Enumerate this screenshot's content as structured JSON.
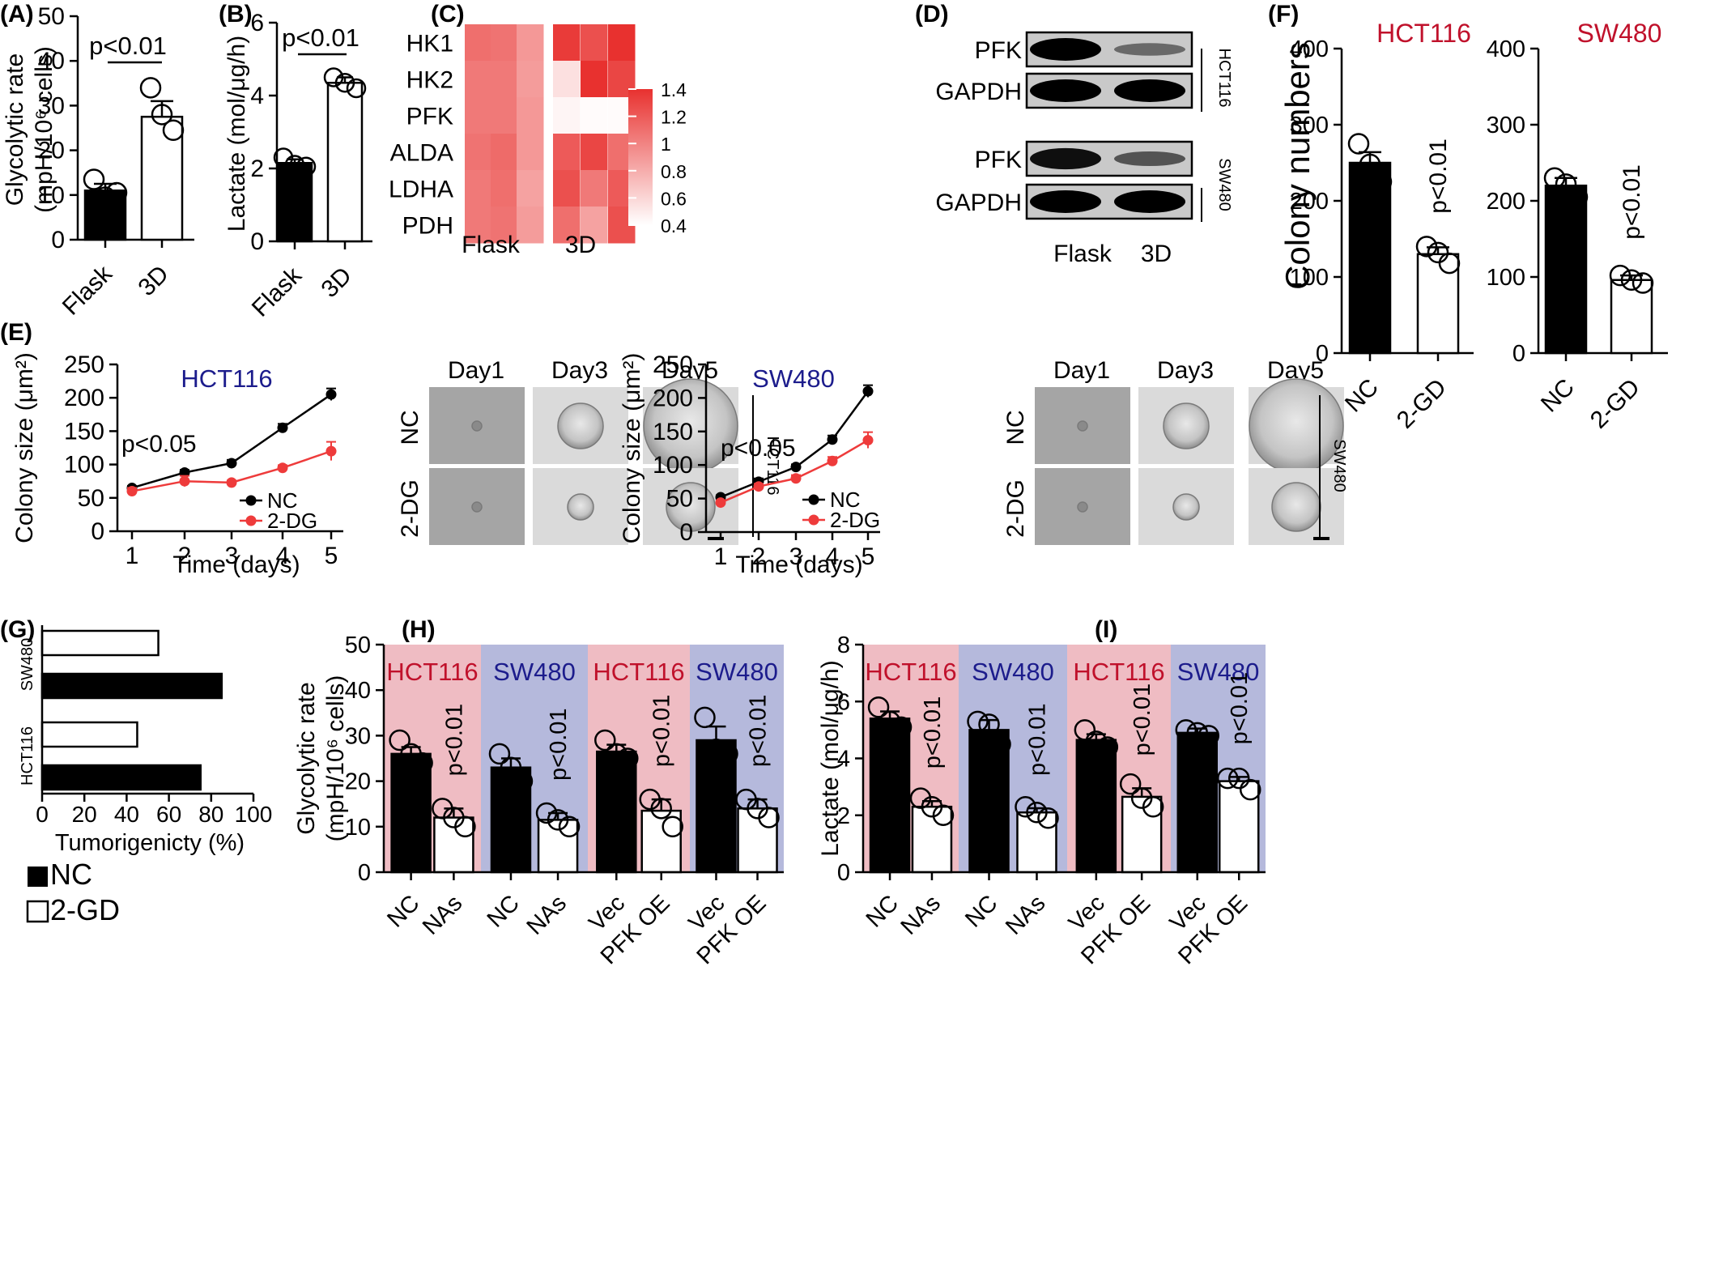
{
  "colors": {
    "black_bar": "#000000",
    "white_bar": "#ffffff",
    "red_series": "#ee3b3b",
    "hct_label": "#c0112b",
    "sw_label": "#1c1c8c",
    "pink_band": "#efbcc3",
    "blue_band": "#b5b9dc",
    "heatmap_low": "#ffffff",
    "heatmap_high": "#e8312f"
  },
  "legend_G": {
    "nc": "NC",
    "gd": "2-GD"
  },
  "icons": {
    "scale_bar": "scale-bar-icon",
    "cell": "cell-image"
  },
  "chart_data": [
    {
      "panel": "(A)",
      "type": "bar",
      "categories": [
        "Flask",
        "3D"
      ],
      "values": [
        11,
        27.5
      ],
      "errors": [
        1.5,
        3.5
      ],
      "points": [
        [
          13.5,
          10.5,
          9.5
        ],
        [
          34,
          24.5,
          28
        ]
      ],
      "ylabel": "Glycolytic rate",
      "ylabel2": "(mpH/10⁶ cells)",
      "ylim": [
        0,
        50
      ],
      "yticks": [
        "0",
        "10",
        "20",
        "30",
        "40",
        "50"
      ],
      "annotation": "p<0.01"
    },
    {
      "panel": "(B)",
      "type": "bar",
      "categories": [
        "Flask",
        "3D"
      ],
      "values": [
        2.15,
        4.35
      ],
      "errors": [
        0.1,
        0.15
      ],
      "points": [
        [
          2.3,
          2.05,
          2.1
        ],
        [
          4.5,
          4.2,
          4.35
        ]
      ],
      "ylabel": "Lactate (mol/μg/h)",
      "ylim": [
        0,
        6
      ],
      "yticks": [
        "0",
        "2",
        "4",
        "6"
      ],
      "annotation": "p<0.01"
    },
    {
      "panel": "(C)",
      "type": "heatmap",
      "rows": [
        "HK1",
        "HK2",
        "PFK",
        "ALDA",
        "LDHA",
        "PDH"
      ],
      "groups": [
        "Flask",
        "3D"
      ],
      "values": [
        [
          1.1,
          1.08,
          0.9,
          1.35,
          1.25,
          1.45
        ],
        [
          1.05,
          1.05,
          0.88,
          0.55,
          1.4,
          1.3
        ],
        [
          1.05,
          1.05,
          0.9,
          0.45,
          0.42,
          0.42
        ],
        [
          1.08,
          1.12,
          0.9,
          1.2,
          1.3,
          1.1
        ],
        [
          1.05,
          1.1,
          0.85,
          1.25,
          1.05,
          1.2
        ],
        [
          1.05,
          1.08,
          0.88,
          1.1,
          0.85,
          1.25
        ]
      ],
      "colorbar": {
        "min": 0.4,
        "max": 1.4,
        "ticks": [
          "1.4",
          "1.2",
          "1",
          "0.8",
          "0.6",
          "0.4"
        ]
      }
    },
    {
      "panel": "(D)",
      "type": "table",
      "blocks": [
        {
          "cell_line": "HCT116",
          "bands": [
            "PFK",
            "GAPDH"
          ],
          "intensity": [
            [
              1.0,
              0.3
            ],
            [
              1.0,
              1.0
            ]
          ]
        },
        {
          "cell_line": "SW480",
          "bands": [
            "PFK",
            "GAPDH"
          ],
          "intensity": [
            [
              0.9,
              0.45
            ],
            [
              1.0,
              1.0
            ]
          ]
        }
      ],
      "lanes": [
        "Flask",
        "3D"
      ]
    },
    {
      "panel": "(F)",
      "type": "bar",
      "subplots": [
        {
          "title": "HCT116",
          "categories": [
            "NC",
            "2-GD"
          ],
          "values": [
            250,
            130
          ],
          "errors": [
            14,
            9
          ],
          "points": [
            [
              275,
              225,
              248
            ],
            [
              140,
              118,
              132
            ]
          ],
          "annotation": "p<0.01"
        },
        {
          "title": "SW480",
          "categories": [
            "NC",
            "2-GD"
          ],
          "values": [
            220,
            96
          ],
          "errors": [
            10,
            6
          ],
          "points": [
            [
              230,
              205,
              222
            ],
            [
              102,
              92,
              96
            ]
          ],
          "annotation": "p<0.01"
        }
      ],
      "ylabel": "Colony numbers",
      "ylim": [
        0,
        400
      ],
      "yticks": [
        "0",
        "100",
        "200",
        "300",
        "400"
      ]
    },
    {
      "panel": "(E)",
      "type": "line",
      "subplots": [
        {
          "title": "HCT116",
          "x": [
            1,
            2,
            3,
            4,
            5
          ],
          "series": [
            {
              "name": "NC",
              "values": [
                65,
                88,
                102,
                155,
                205
              ],
              "errors": [
                3,
                4,
                5,
                6,
                9
              ]
            },
            {
              "name": "2-DG",
              "values": [
                60,
                75,
                73,
                95,
                120
              ],
              "errors": [
                5,
                8,
                3,
                4,
                14
              ]
            }
          ],
          "annotation": "p<0.05",
          "images": {
            "rows": [
              "NC",
              "2-DG"
            ],
            "cols": [
              "Day1",
              "Day3",
              "Day5"
            ],
            "side_label": "HCT116"
          }
        },
        {
          "title": "SW480",
          "x": [
            1,
            2,
            3,
            4,
            5
          ],
          "series": [
            {
              "name": "NC",
              "values": [
                52,
                75,
                97,
                138,
                210
              ],
              "errors": [
                3,
                5,
                4,
                6,
                9
              ]
            },
            {
              "name": "2-DG",
              "values": [
                44,
                68,
                80,
                106,
                137
              ],
              "errors": [
                3,
                4,
                5,
                6,
                12
              ]
            }
          ],
          "annotation": "p<0.05",
          "images": {
            "rows": [
              "NC",
              "2-DG"
            ],
            "cols": [
              "Day1",
              "Day3",
              "Day5"
            ],
            "side_label": "SW480"
          }
        }
      ],
      "xlabel": "Time (days)",
      "ylabel": "Colony size (μm²)",
      "ylim": [
        0,
        250
      ],
      "yticks": [
        "0",
        "50",
        "100",
        "150",
        "200",
        "250"
      ],
      "xticks": [
        "1",
        "2",
        "3",
        "4",
        "5"
      ]
    },
    {
      "panel": "(G)",
      "type": "bar",
      "orientation": "horizontal",
      "groups": [
        "SW480",
        "HCT116"
      ],
      "series": [
        {
          "name": "2-GD",
          "values": [
            55,
            45
          ]
        },
        {
          "name": "NC",
          "values": [
            85,
            75
          ]
        }
      ],
      "xlabel": "Tumorigenicty (%)",
      "xlim": [
        0,
        100
      ],
      "xticks": [
        "0",
        "20",
        "40",
        "60",
        "80",
        "100"
      ]
    },
    {
      "panel": "(H)",
      "type": "bar",
      "bands": [
        {
          "label": "HCT116",
          "categories": [
            "NC",
            "NAs"
          ],
          "values": [
            26,
            12
          ],
          "errors": [
            1.5,
            2
          ],
          "points": [
            [
              29,
              24,
              26
            ],
            [
              14,
              10,
              12
            ]
          ],
          "color": "pink"
        },
        {
          "label": "SW480",
          "categories": [
            "NC",
            "NAs"
          ],
          "values": [
            23,
            11.5
          ],
          "errors": [
            2,
            1.5
          ],
          "points": [
            [
              26,
              20,
              23
            ],
            [
              13,
              10,
              11.5
            ]
          ],
          "color": "blue"
        },
        {
          "label": "HCT116",
          "categories": [
            "Vec",
            "PFK OE"
          ],
          "values": [
            26.5,
            13.5
          ],
          "errors": [
            1.5,
            2.5
          ],
          "points": [
            [
              29,
              25,
              26
            ],
            [
              16,
              10,
              14
            ]
          ],
          "color": "pink"
        },
        {
          "label": "SW480",
          "categories": [
            "Vec",
            "PFK OE"
          ],
          "values": [
            29,
            14
          ],
          "errors": [
            3,
            2
          ],
          "points": [
            [
              34,
              26,
              27
            ],
            [
              16,
              12,
              14
            ]
          ],
          "color": "blue"
        }
      ],
      "annotation": "p<0.01",
      "ylabel": "Glycolytic rate",
      "ylabel2": "(mpH/10⁶ cells)",
      "ylim": [
        0,
        50
      ],
      "yticks": [
        "0",
        "10",
        "20",
        "30",
        "40",
        "50"
      ]
    },
    {
      "panel": "(I)",
      "type": "bar",
      "bands": [
        {
          "label": "HCT116",
          "categories": [
            "NC",
            "NAs"
          ],
          "values": [
            5.4,
            2.3
          ],
          "errors": [
            0.25,
            0.2
          ],
          "points": [
            [
              5.8,
              5.1,
              5.3
            ],
            [
              2.6,
              2.0,
              2.3
            ]
          ],
          "color": "pink"
        },
        {
          "label": "SW480",
          "categories": [
            "NC",
            "NAs"
          ],
          "values": [
            5.0,
            2.1
          ],
          "errors": [
            0.35,
            0.15
          ],
          "points": [
            [
              5.3,
              4.5,
              5.2
            ],
            [
              2.3,
              1.9,
              2.1
            ]
          ],
          "color": "blue"
        },
        {
          "label": "HCT116",
          "categories": [
            "Vec",
            "PFK OE"
          ],
          "values": [
            4.65,
            2.65
          ],
          "errors": [
            0.2,
            0.3
          ],
          "points": [
            [
              5.0,
              4.4,
              4.6
            ],
            [
              3.1,
              2.3,
              2.6
            ]
          ],
          "color": "pink"
        },
        {
          "label": "SW480",
          "categories": [
            "Vec",
            "PFK OE"
          ],
          "values": [
            4.9,
            3.2
          ],
          "errors": [
            0.15,
            0.15
          ],
          "points": [
            [
              5.0,
              4.8,
              4.9
            ],
            [
              3.3,
              2.9,
              3.3
            ]
          ],
          "color": "blue"
        }
      ],
      "annotation": "p<0.01",
      "ylabel": "Lactate (mol/μg/h)",
      "ylim": [
        0,
        8
      ],
      "yticks": [
        "0",
        "2",
        "4",
        "6",
        "8"
      ]
    }
  ]
}
